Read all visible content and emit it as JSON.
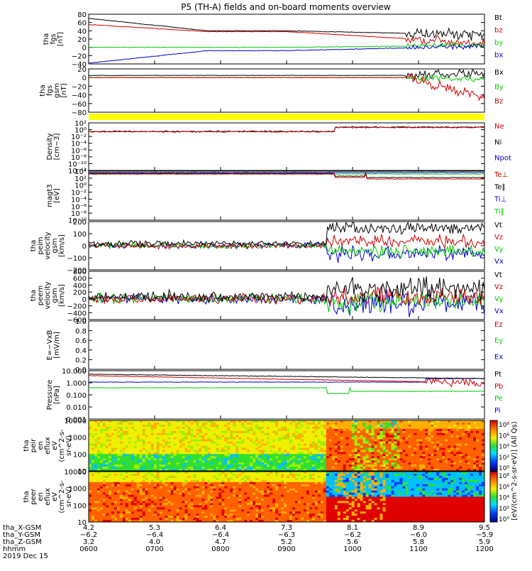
{
  "chart_data": {
    "title": "P5 (TH-A) fields and on-board moments overview",
    "type": "line",
    "date_label": "2019 Dec 15",
    "panels": [
      {
        "id": "fgs-dsl",
        "ylabel": [
          "tha",
          "fgs",
          "[nT]"
        ],
        "yticks": [
          "80",
          "60",
          "40",
          "20",
          "0",
          "−20",
          "−40"
        ],
        "legend": [
          {
            "name": "Bt",
            "color": "#000000"
          },
          {
            "name": "bz",
            "color": "#cc0000"
          },
          {
            "name": "by",
            "color": "#00cc00"
          },
          {
            "name": "bx",
            "color": "#0000cc"
          }
        ],
        "series": [
          {
            "name": "Bt",
            "color": "#000000",
            "start": 70,
            "mid": 40,
            "end": 30,
            "noise_late": 18
          },
          {
            "name": "bz",
            "color": "#cc0000",
            "start": 55,
            "mid": 38,
            "end": 10,
            "noise_late": 18
          },
          {
            "name": "by",
            "color": "#00cc00",
            "start": 0,
            "mid": 0,
            "end": 5,
            "noise_late": 10
          },
          {
            "name": "bx",
            "color": "#0000cc",
            "start": -38,
            "mid": -8,
            "end": 3,
            "noise_late": 10
          }
        ]
      },
      {
        "id": "fgs-gsm",
        "ylabel": [
          "tha",
          "fgs",
          "gsm",
          "[nT]"
        ],
        "yticks": [
          "20",
          "0",
          "−20",
          "−40",
          "−60",
          "−80"
        ],
        "legend": [
          {
            "name": "Bx",
            "color": "#000000"
          },
          {
            "name": "By",
            "color": "#00cc00"
          },
          {
            "name": "Bz",
            "color": "#cc0000"
          }
        ],
        "series": [
          {
            "name": "Bx",
            "color": "#000000",
            "start": 5,
            "mid": 5,
            "end": 10,
            "noise_late": 15
          },
          {
            "name": "By",
            "color": "#00cc00",
            "start": 0,
            "mid": 0,
            "end": -5,
            "noise_late": 10
          },
          {
            "name": "Bz",
            "color": "#cc0000",
            "start": 0,
            "mid": 0,
            "end": -45,
            "noise_late": 18
          }
        ]
      },
      {
        "id": "density",
        "ylabel": [
          "Density",
          "[cm−3]"
        ],
        "yticks": [
          "10²",
          "10⁰",
          "10⁻²",
          "10⁻⁴",
          "10⁻⁶",
          "10⁻⁸",
          "10⁻¹⁰",
          "10⁻¹²"
        ],
        "legend": [
          {
            "name": "Ne",
            "color": "#cc0000"
          },
          {
            "name": "Ni",
            "color": "#000000"
          },
          {
            "name": "Npot",
            "color": "#0000cc"
          }
        ]
      },
      {
        "id": "temperature",
        "ylabel": [
          "magt3",
          "[eV]"
        ],
        "yticks": [
          "10⁴",
          "10²",
          "10⁰",
          "10⁻²",
          "10⁻⁴",
          "10⁻⁶",
          "10⁻⁸",
          "10⁻¹⁰"
        ],
        "legend": [
          {
            "name": "Te⊥",
            "color": "#cc0000"
          },
          {
            "name": "Te∥",
            "color": "#000000"
          },
          {
            "name": "Ti⊥",
            "color": "#0000cc"
          },
          {
            "name": "Ti∥",
            "color": "#00cc00"
          }
        ]
      },
      {
        "id": "peim-vel",
        "ylabel": [
          "tha",
          "peim",
          "velocity",
          "gsm",
          "[km/s]"
        ],
        "yticks": [
          "200",
          "100",
          "0",
          "−100",
          "−200"
        ],
        "legend": [
          {
            "name": "Vt",
            "color": "#000000"
          },
          {
            "name": "Vz",
            "color": "#cc0000"
          },
          {
            "name": "Vy",
            "color": "#00cc00"
          },
          {
            "name": "Vx",
            "color": "#0000cc"
          }
        ]
      },
      {
        "id": "peem-vel",
        "ylabel": [
          "tha",
          "peem",
          "velocity",
          "gsm",
          "[km/s]"
        ],
        "yticks": [
          "800",
          "600",
          "400",
          "200",
          "0",
          "−200",
          "−400",
          "−600"
        ],
        "legend": [
          {
            "name": "Vt",
            "color": "#000000"
          },
          {
            "name": "Vz",
            "color": "#cc0000"
          },
          {
            "name": "Vy",
            "color": "#00cc00"
          },
          {
            "name": "Vx",
            "color": "#0000cc"
          }
        ]
      },
      {
        "id": "efield",
        "ylabel": [
          "E=−VxB",
          "[mV/m]"
        ],
        "yticks": [
          "1.0",
          "0.8",
          "0.6",
          "0.4",
          "0.2",
          "0.0"
        ],
        "legend": [
          {
            "name": "Ez",
            "color": "#cc0000"
          },
          {
            "name": "Ey",
            "color": "#00cc00"
          },
          {
            "name": "Ex",
            "color": "#0000cc"
          }
        ]
      },
      {
        "id": "pressure",
        "ylabel": [
          "Pressure",
          "[nPa]"
        ],
        "yticks": [
          "10.000",
          "1.000",
          "0.100",
          "0.010",
          "0.001"
        ],
        "legend": [
          {
            "name": "Pt",
            "color": "#000000"
          },
          {
            "name": "Pb",
            "color": "#cc0000"
          },
          {
            "name": "Pe",
            "color": "#00cc00"
          },
          {
            "name": "Pi",
            "color": "#0000cc"
          }
        ]
      },
      {
        "id": "peir",
        "ylabel": [
          "tha",
          "peir",
          "en",
          "eflux",
          "eV",
          "(cm^2-s-",
          "sr-eV)"
        ],
        "yticks": [
          "10000",
          "1000",
          "100",
          "10"
        ]
      },
      {
        "id": "peer",
        "ylabel": [
          "tha",
          "peer",
          "en",
          "eflux",
          "eV",
          "(cm^2-s-",
          "sr-eV)"
        ],
        "yticks": [
          "10000",
          "1000",
          "100",
          "10"
        ]
      }
    ],
    "colorbar": {
      "label": "[eV/(cm^2-s-sr-eV)] (All Qs)",
      "ticks_ion": [
        "10⁸",
        "10⁶",
        "10⁴",
        "10²",
        "10⁰"
      ],
      "ticks_elec": [
        "10⁸",
        "10⁶",
        "10⁴",
        "10²",
        "10⁰"
      ]
    },
    "xaxis": {
      "rows": [
        {
          "label": "tha_X-GSM",
          "values": [
            "4.2",
            "5.3",
            "6.4",
            "7.3",
            "8.1",
            "8.9",
            "9.5"
          ]
        },
        {
          "label": "tha_Y-GSM",
          "values": [
            "−6.2",
            "−6.4",
            "−6.4",
            "−6.3",
            "−6.2",
            "−6.0",
            "−5.9"
          ]
        },
        {
          "label": "tha_Z-GSM",
          "values": [
            "3.2",
            "4.0",
            "4.7",
            "5.2",
            "5.6",
            "5.8",
            "5.9"
          ]
        },
        {
          "label": "hhmm",
          "values": [
            "0600",
            "0700",
            "0800",
            "0900",
            "1000",
            "1100",
            "1200"
          ]
        }
      ]
    }
  }
}
